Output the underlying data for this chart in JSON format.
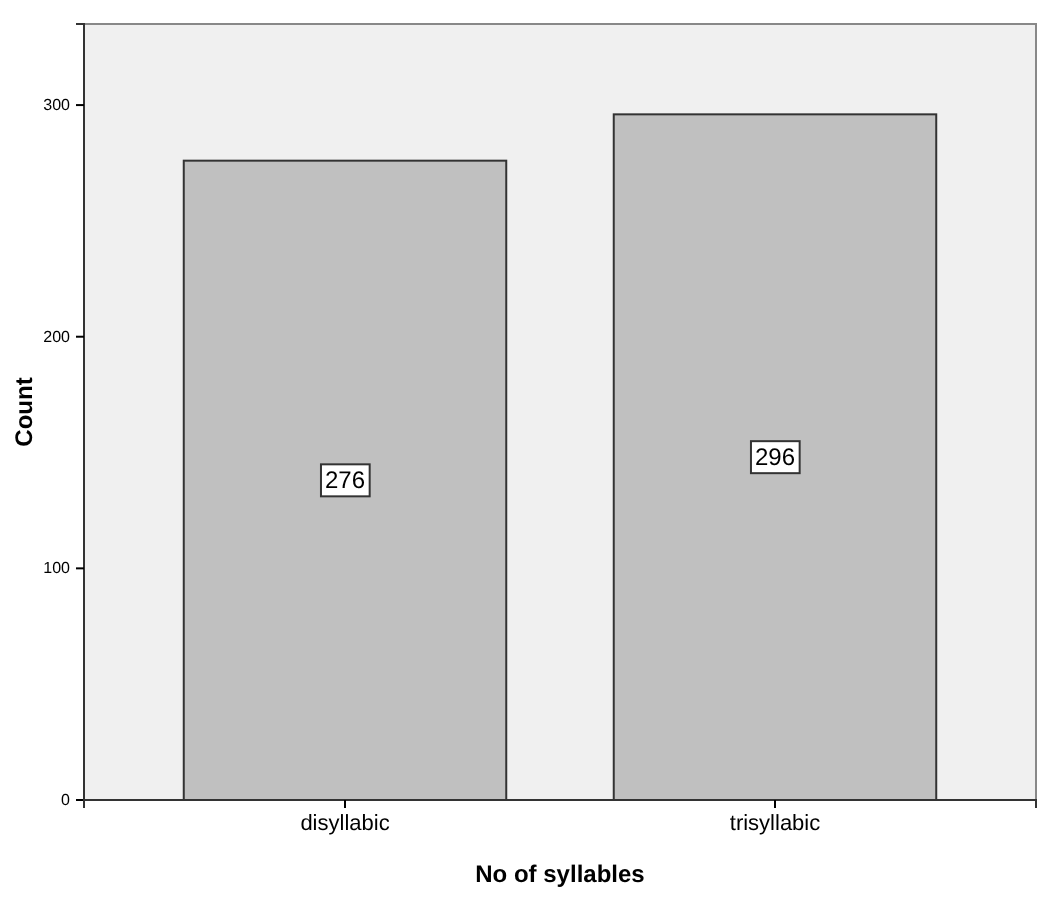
{
  "chart_data": {
    "type": "bar",
    "xlabel": "No of syllables",
    "ylabel": "Count",
    "categories": [
      "disyllabic",
      "trisyllabic"
    ],
    "values": [
      276,
      296
    ],
    "color": "#c0c0c0",
    "ylim": [
      0,
      335
    ],
    "yticks": [
      0,
      100,
      200,
      300
    ],
    "data_labels": true
  }
}
